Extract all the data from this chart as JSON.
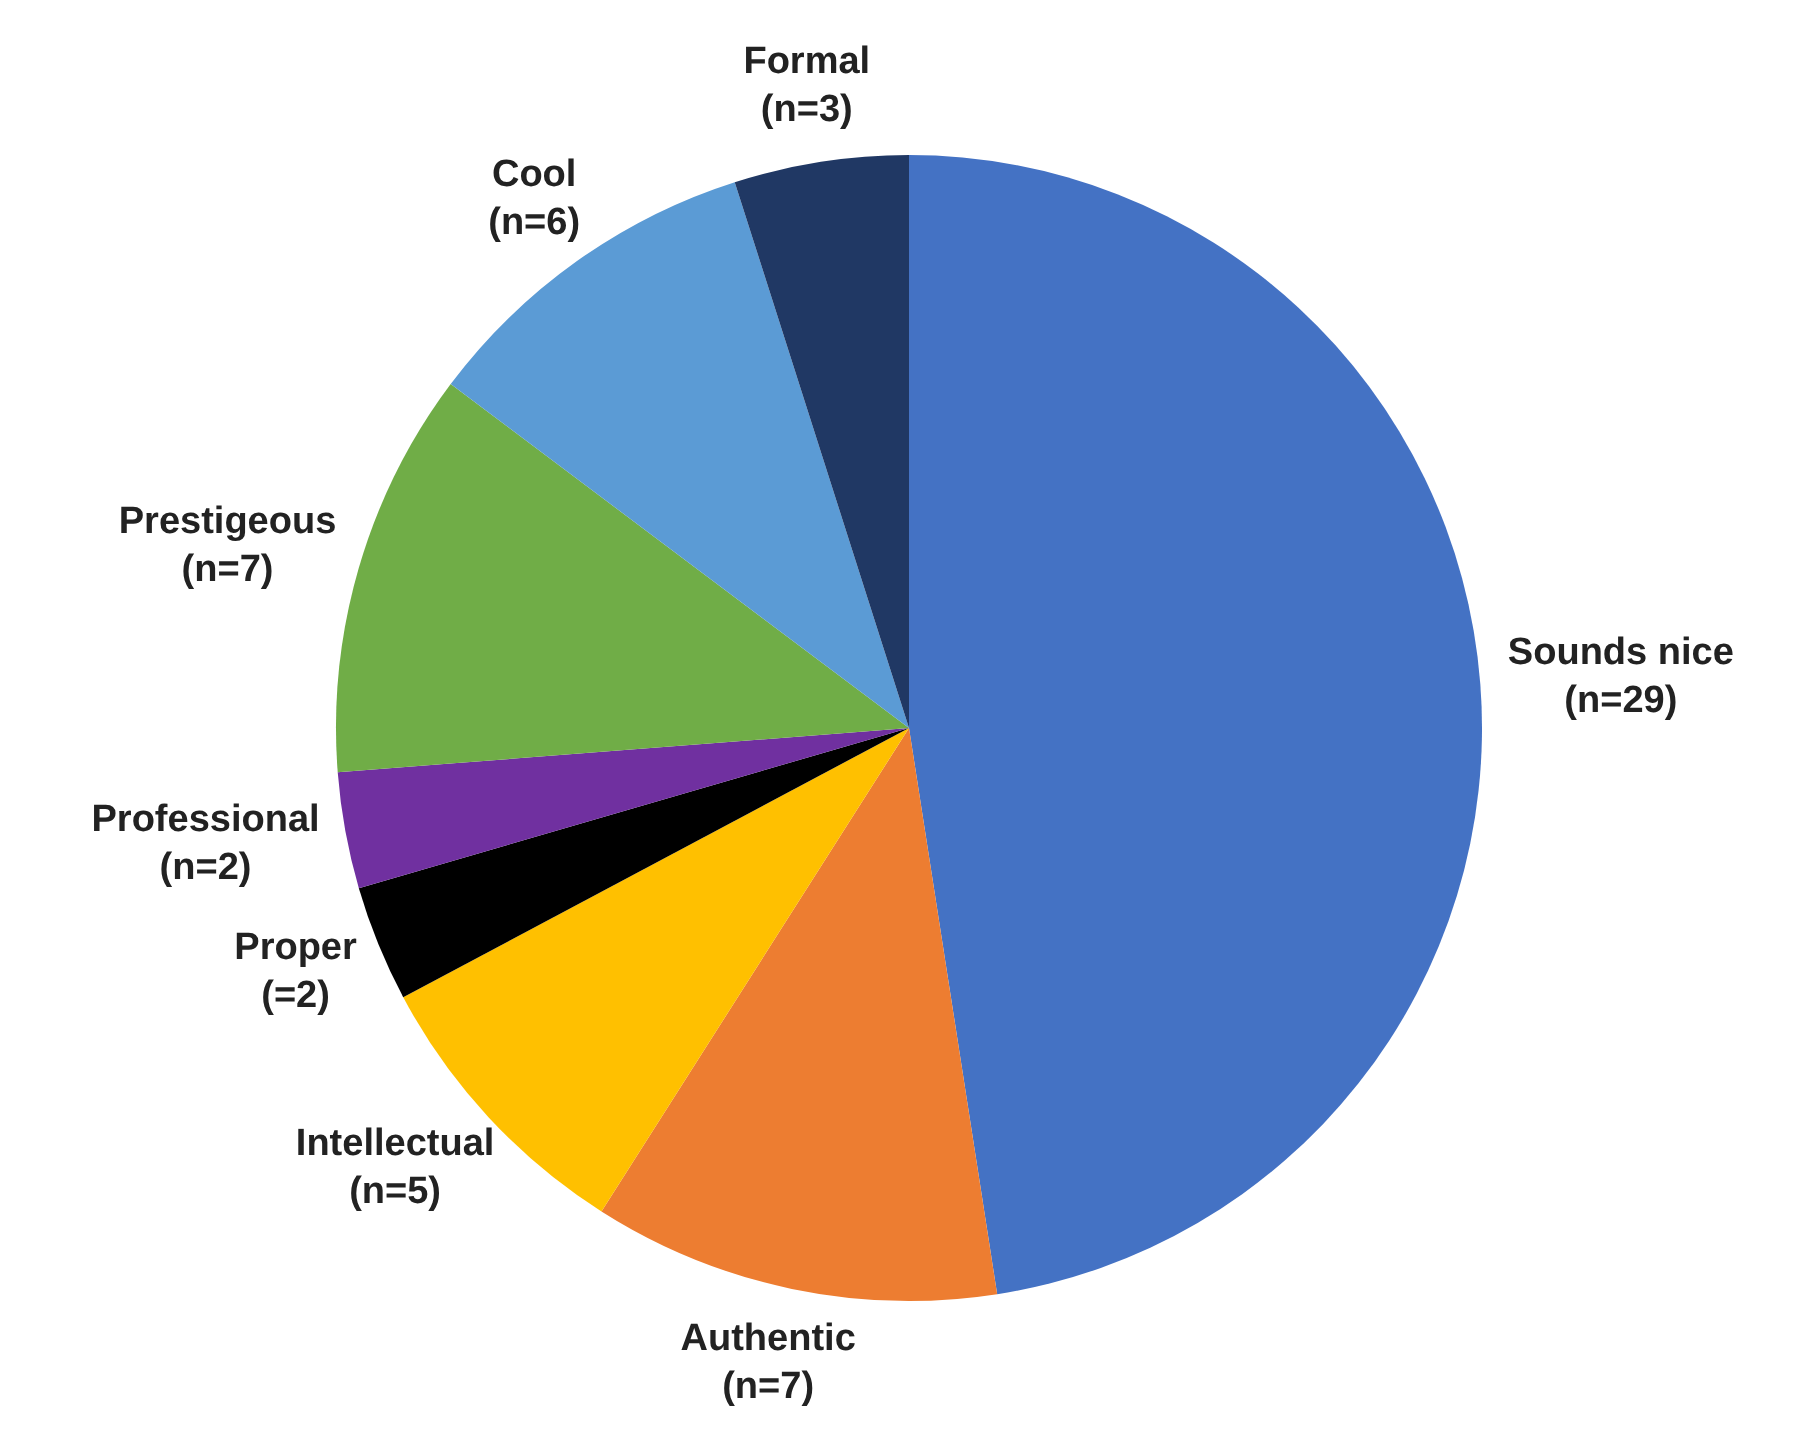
{
  "chart_data": {
    "type": "pie",
    "categories": [
      "Sounds nice",
      "Authentic",
      "Intellectual",
      "Proper",
      "Professional",
      "Prestigeous",
      "Cool",
      "Formal"
    ],
    "values": [
      29,
      7,
      5,
      2,
      2,
      7,
      6,
      3
    ],
    "value_labels": [
      "(n=29)",
      "(n=7)",
      "(n=5)",
      "(=2)",
      "(n=2)",
      "(n=7)",
      "(n=6)",
      "(n=3)"
    ],
    "colors": [
      "#4472c4",
      "#ed7d31",
      "#ffc000",
      "#000000",
      "#7030a0",
      "#70ad47",
      "#5b9bd5",
      "#203864"
    ],
    "legend": false
  }
}
